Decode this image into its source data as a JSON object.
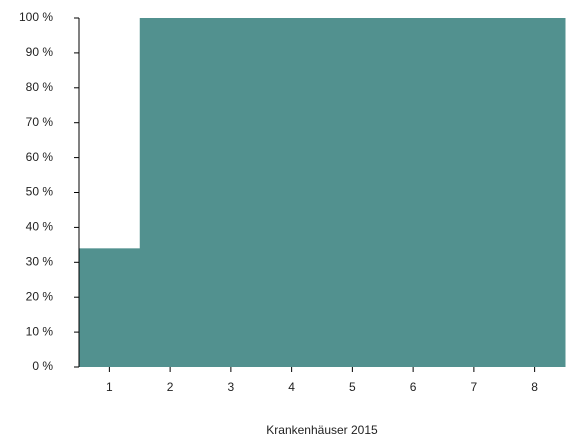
{
  "chart_data": {
    "type": "bar",
    "x_label": "Krankenhäuser 2015",
    "categories": [
      "1",
      "2",
      "3",
      "4",
      "5",
      "6",
      "7",
      "8"
    ],
    "values": [
      34,
      100,
      100,
      100,
      100,
      100,
      100,
      100
    ],
    "color": "#52918f",
    "ylim": [
      0,
      100
    ],
    "yticks": [
      {
        "value": 0,
        "label": "0 %"
      },
      {
        "value": 10,
        "label": "10 %"
      },
      {
        "value": 20,
        "label": "20 %"
      },
      {
        "value": 30,
        "label": "30 %"
      },
      {
        "value": 40,
        "label": "40 %"
      },
      {
        "value": 50,
        "label": "50 %"
      },
      {
        "value": 60,
        "label": "60 %"
      },
      {
        "value": 70,
        "label": "70 %"
      },
      {
        "value": 80,
        "label": "80 %"
      },
      {
        "value": 90,
        "label": "90 %"
      },
      {
        "value": 100,
        "label": "100 %"
      }
    ],
    "grid": false
  }
}
